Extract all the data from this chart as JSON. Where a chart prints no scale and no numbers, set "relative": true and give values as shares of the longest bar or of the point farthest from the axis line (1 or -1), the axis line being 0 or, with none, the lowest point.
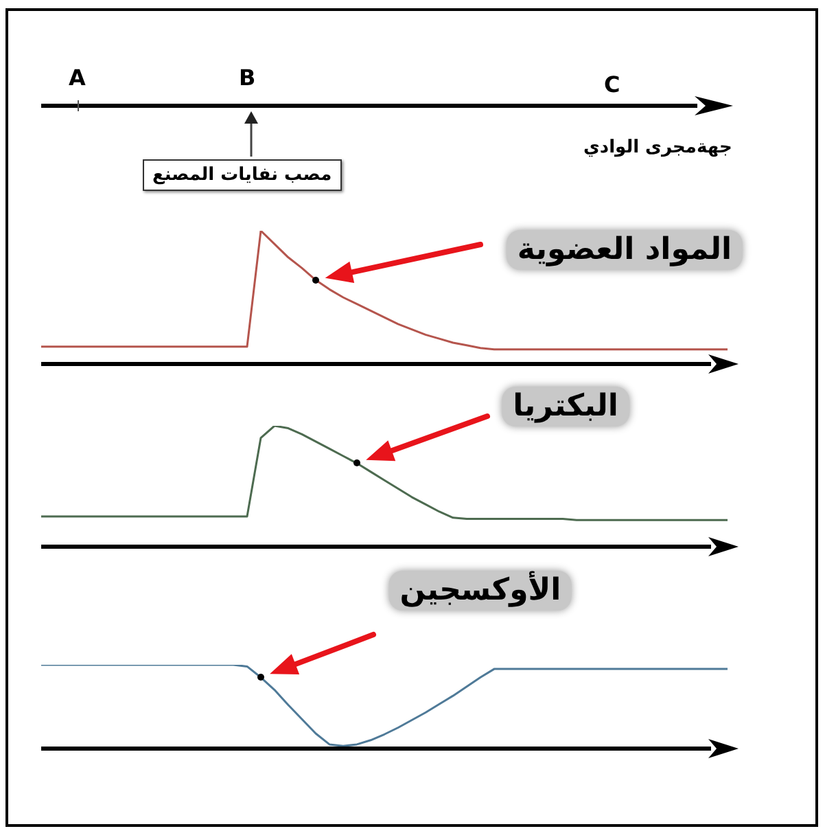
{
  "chart_data": [
    {
      "type": "other",
      "xlabel": "جهةمجرى الوادي",
      "annotations": [
        "A",
        "B",
        "C",
        "مصب نفايات المصنع"
      ]
    },
    {
      "type": "line",
      "title": "المواد العضوية",
      "relative": true,
      "tick_labels": false,
      "marker": "none",
      "categories": [
        null,
        null,
        null,
        null,
        null,
        null,
        null,
        null,
        null,
        null,
        null,
        null,
        null,
        null,
        null,
        null,
        null,
        null,
        null,
        null,
        null,
        null,
        null,
        null,
        null,
        null,
        null,
        null,
        null,
        null,
        null,
        null,
        null,
        null,
        null,
        null,
        null,
        null,
        null,
        null,
        null,
        null,
        null,
        null,
        null,
        null,
        null,
        null,
        null,
        null,
        null
      ],
      "series": [
        {
          "color": "#b5554d",
          "values": [
            0.13,
            0.13,
            0.13,
            0.13,
            0.13,
            0.13,
            0.13,
            0.13,
            0.13,
            0.13,
            0.13,
            0.13,
            0.13,
            0.13,
            0.13,
            0.13,
            1.0,
            0.9,
            0.8,
            0.72,
            0.63,
            0.56,
            0.5,
            0.45,
            0.4,
            0.35,
            0.3,
            0.26,
            0.22,
            0.19,
            0.16,
            0.14,
            0.12,
            0.11,
            0.11,
            0.11,
            0.11,
            0.11,
            0.11,
            0.11,
            0.11,
            0.11,
            0.11,
            0.11,
            0.11,
            0.11,
            0.11,
            0.11,
            0.11,
            0.11,
            0.11
          ]
        }
      ]
    },
    {
      "type": "line",
      "title": "البكتريا",
      "relative": true,
      "tick_labels": false,
      "marker": "none",
      "categories": [
        null,
        null,
        null,
        null,
        null,
        null,
        null,
        null,
        null,
        null,
        null,
        null,
        null,
        null,
        null,
        null,
        null,
        null,
        null,
        null,
        null,
        null,
        null,
        null,
        null,
        null,
        null,
        null,
        null,
        null,
        null,
        null,
        null,
        null,
        null,
        null,
        null,
        null,
        null,
        null,
        null,
        null,
        null,
        null,
        null,
        null,
        null,
        null,
        null,
        null,
        null
      ],
      "series": [
        {
          "color": "#4d6b50",
          "values": [
            0.25,
            0.25,
            0.25,
            0.25,
            0.25,
            0.25,
            0.25,
            0.25,
            0.25,
            0.25,
            0.25,
            0.25,
            0.25,
            0.25,
            0.25,
            0.25,
            0.9,
            1.0,
            0.98,
            0.93,
            0.87,
            0.81,
            0.75,
            0.69,
            0.62,
            0.55,
            0.48,
            0.41,
            0.35,
            0.29,
            0.24,
            0.23,
            0.23,
            0.23,
            0.23,
            0.23,
            0.23,
            0.23,
            0.23,
            0.22,
            0.22,
            0.22,
            0.22,
            0.22,
            0.22,
            0.22,
            0.22,
            0.22,
            0.22,
            0.22,
            0.22
          ]
        }
      ]
    },
    {
      "type": "line",
      "title": "الأوكسجين",
      "relative": true,
      "tick_labels": false,
      "marker": "none",
      "categories": [
        null,
        null,
        null,
        null,
        null,
        null,
        null,
        null,
        null,
        null,
        null,
        null,
        null,
        null,
        null,
        null,
        null,
        null,
        null,
        null,
        null,
        null,
        null,
        null,
        null,
        null,
        null,
        null,
        null,
        null,
        null,
        null,
        null,
        null,
        null,
        null,
        null,
        null,
        null,
        null,
        null,
        null,
        null,
        null,
        null,
        null,
        null,
        null,
        null,
        null,
        null
      ],
      "series": [
        {
          "color": "#4f7a98",
          "values": [
            1.0,
            1.0,
            1.0,
            1.0,
            1.0,
            1.0,
            1.0,
            1.0,
            1.0,
            1.0,
            1.0,
            1.0,
            1.0,
            1.0,
            1.0,
            0.98,
            0.85,
            0.7,
            0.52,
            0.35,
            0.18,
            0.05,
            0.03,
            0.05,
            0.1,
            0.17,
            0.25,
            0.34,
            0.43,
            0.53,
            0.63,
            0.74,
            0.85,
            0.95,
            0.95,
            0.95,
            0.95,
            0.95,
            0.95,
            0.95,
            0.95,
            0.95,
            0.95,
            0.95,
            0.95,
            0.95,
            0.95,
            0.95,
            0.95,
            0.95,
            0.95
          ]
        }
      ]
    }
  ]
}
